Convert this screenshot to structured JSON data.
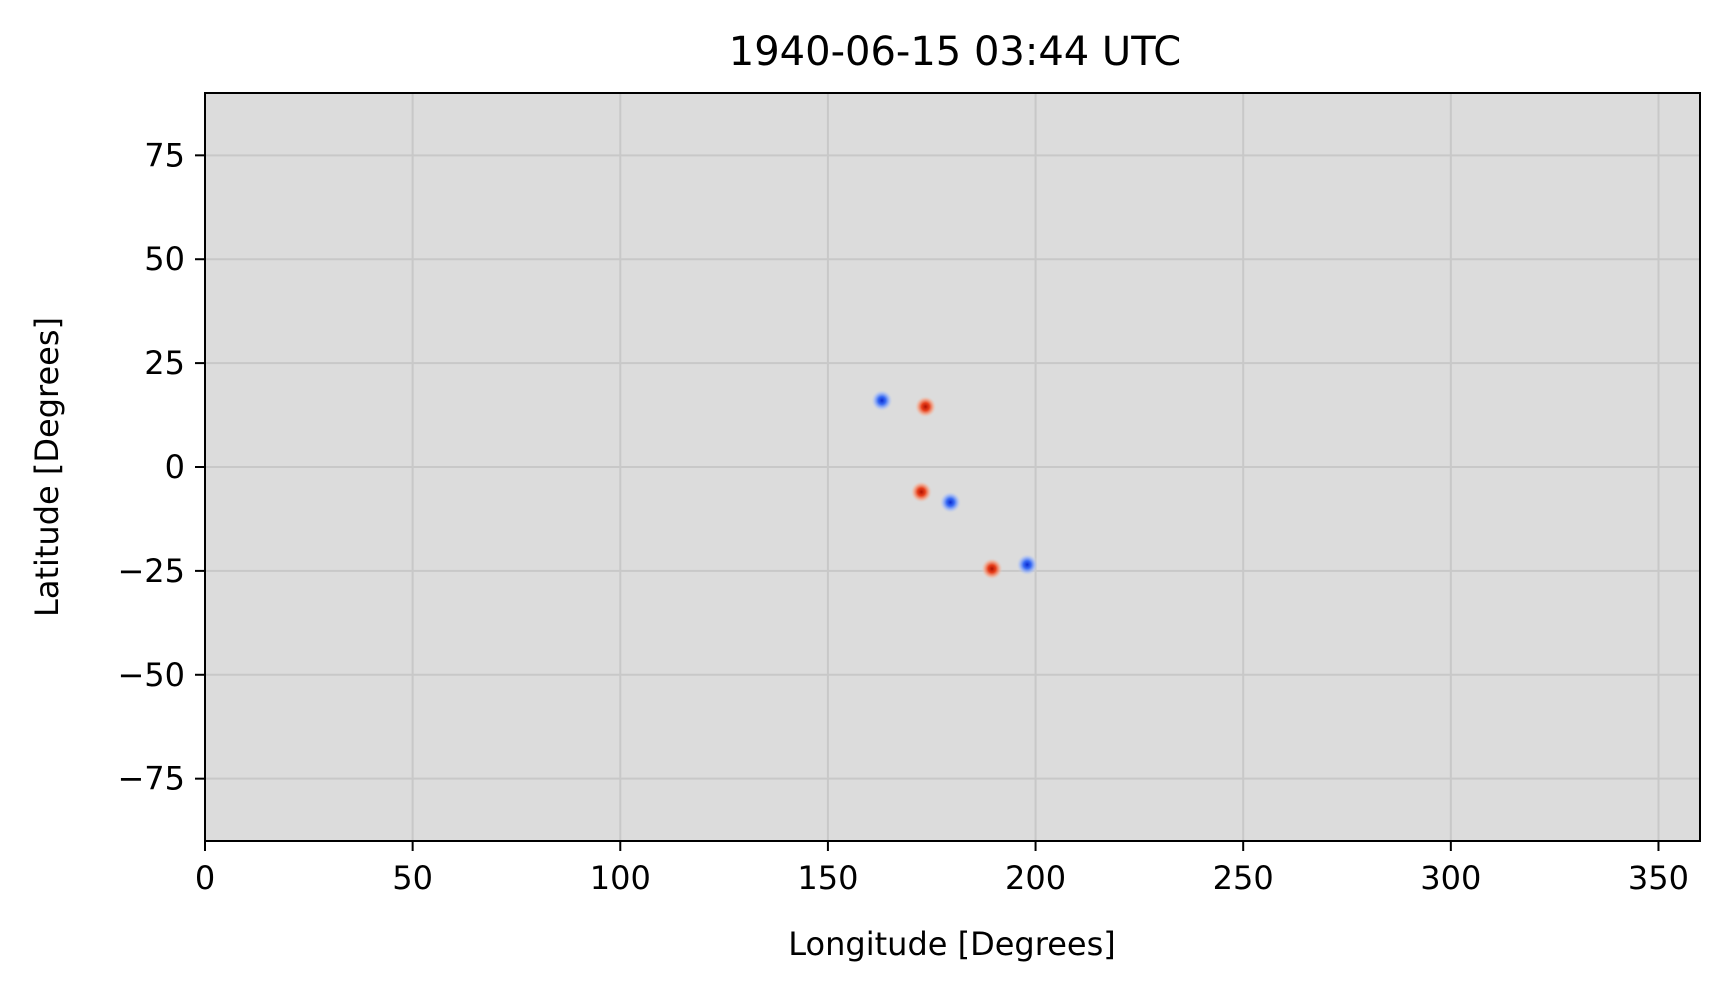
{
  "chart_data": {
    "type": "scatter",
    "title": "1940-06-15 03:44 UTC",
    "xlabel": "Longitude [Degrees]",
    "ylabel": "Latitude [Degrees]",
    "xlim": [
      0,
      360
    ],
    "ylim": [
      -90,
      90
    ],
    "xticks": [
      0,
      50,
      100,
      150,
      200,
      250,
      300,
      350
    ],
    "yticks": [
      75,
      50,
      25,
      0,
      -25,
      -50,
      -75
    ],
    "grid": true,
    "legend": "none",
    "colors": {
      "background": "#dcdcdc",
      "grid": "#c8c8c8",
      "positive": "#e8401c",
      "negative": "#3a6cf5"
    },
    "points": [
      {
        "x": 163,
        "y": 16,
        "polarity": "negative"
      },
      {
        "x": 173.5,
        "y": 14.5,
        "polarity": "positive"
      },
      {
        "x": 172.5,
        "y": -6,
        "polarity": "positive"
      },
      {
        "x": 179.5,
        "y": -8.5,
        "polarity": "negative"
      },
      {
        "x": 189.5,
        "y": -24.5,
        "polarity": "positive"
      },
      {
        "x": 198,
        "y": -23.5,
        "polarity": "negative"
      }
    ]
  }
}
